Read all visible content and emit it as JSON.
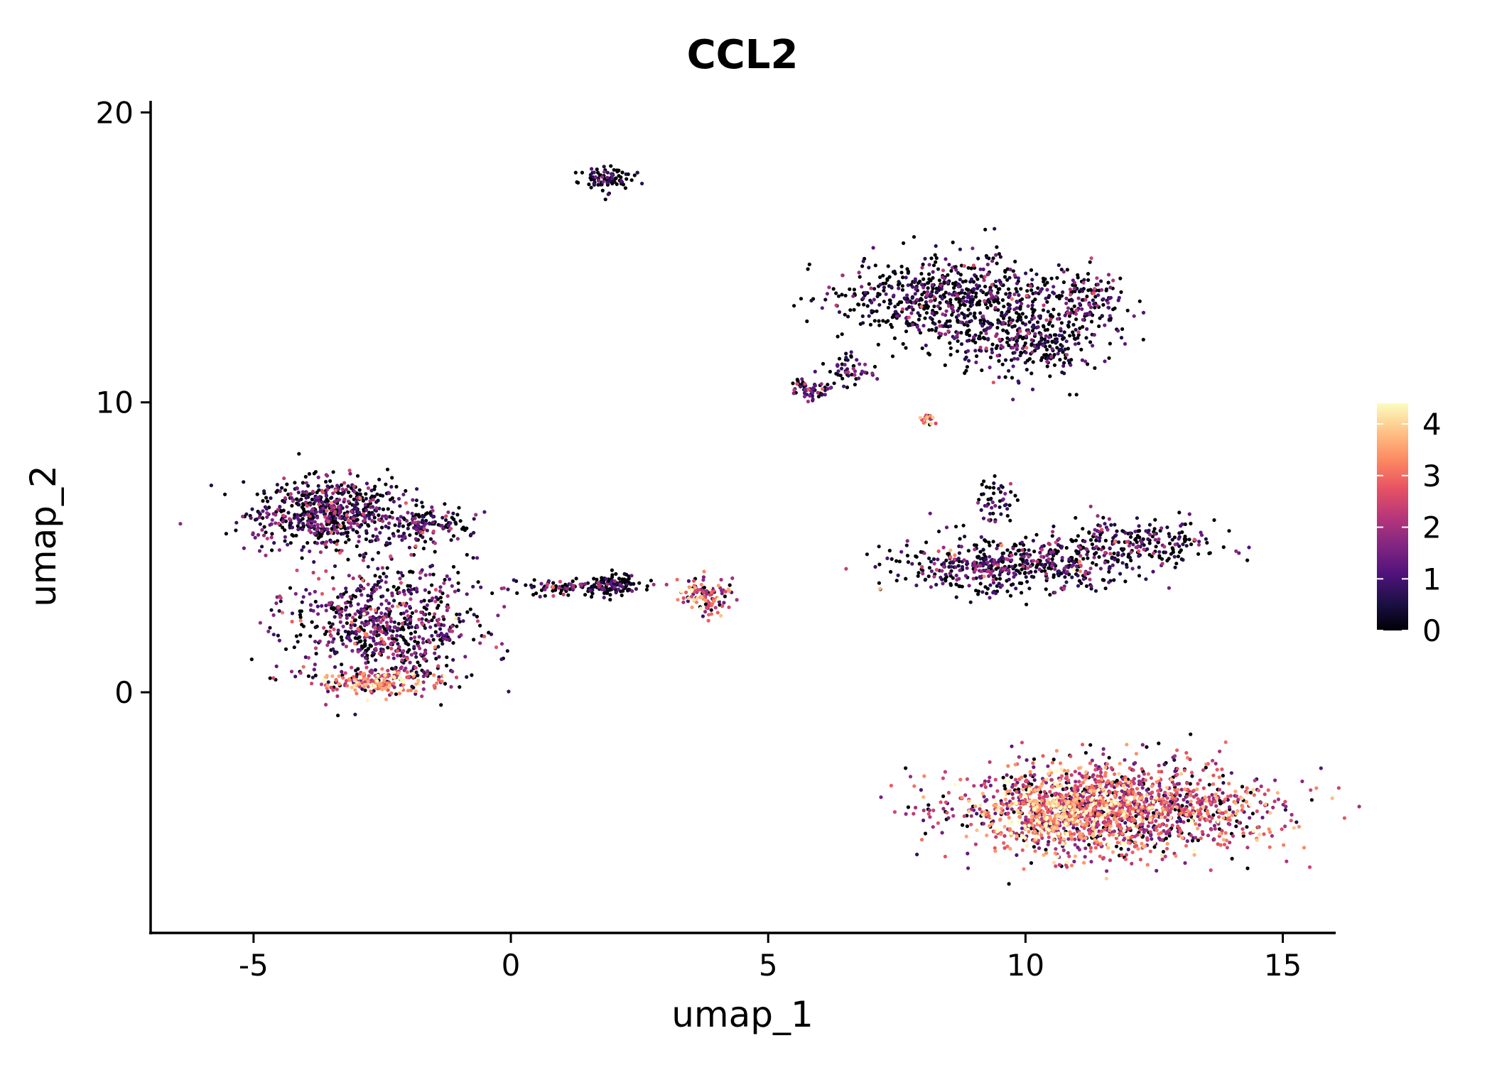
{
  "chart_data": {
    "type": "scatter",
    "title": "CCL2",
    "xlabel": "umap_1",
    "ylabel": "umap_2",
    "xlim": [
      -7,
      16
    ],
    "ylim": [
      -8.3,
      20.4
    ],
    "x_ticks": [
      -5,
      0,
      5,
      10,
      15
    ],
    "y_ticks": [
      0,
      10,
      20
    ],
    "grid": false,
    "color_scale": {
      "name": "magma",
      "min": 0,
      "max": 4.4,
      "ticks": [
        0,
        1,
        2,
        3,
        4
      ],
      "colors": [
        "#000004",
        "#1d1147",
        "#51127c",
        "#822681",
        "#b73779",
        "#e75263",
        "#fc8961",
        "#fec287",
        "#fcfdbf"
      ],
      "legend_position": "right"
    },
    "clusters": [
      {
        "cx": -3.5,
        "cy": 6.2,
        "sx": 0.95,
        "sy": 0.75,
        "n": 650,
        "mean_expr": 0.9
      },
      {
        "cx": -2.5,
        "cy": 2.3,
        "sx": 1.15,
        "sy": 1.2,
        "n": 750,
        "mean_expr": 1.3
      },
      {
        "cx": -2.6,
        "cy": 0.4,
        "sx": 0.65,
        "sy": 0.25,
        "n": 200,
        "mean_expr": 2.8
      },
      {
        "cx": -1.6,
        "cy": 5.8,
        "sx": 0.5,
        "sy": 0.4,
        "n": 120,
        "mean_expr": 0.6
      },
      {
        "cx": 1.2,
        "cy": 3.6,
        "sx": 0.75,
        "sy": 0.15,
        "n": 110,
        "mean_expr": 1.0
      },
      {
        "cx": 2.0,
        "cy": 3.7,
        "sx": 0.25,
        "sy": 0.25,
        "n": 90,
        "mean_expr": 0.4
      },
      {
        "cx": 3.8,
        "cy": 3.3,
        "sx": 0.3,
        "sy": 0.35,
        "n": 110,
        "mean_expr": 2.5
      },
      {
        "cx": 1.9,
        "cy": 17.7,
        "sx": 0.3,
        "sy": 0.25,
        "n": 90,
        "mean_expr": 0.2
      },
      {
        "cx": 5.8,
        "cy": 10.5,
        "sx": 0.3,
        "sy": 0.25,
        "n": 60,
        "mean_expr": 1.2
      },
      {
        "cx": 6.6,
        "cy": 11.1,
        "sx": 0.3,
        "sy": 0.3,
        "n": 50,
        "mean_expr": 1.0
      },
      {
        "cx": 8.6,
        "cy": 13.6,
        "sx": 1.3,
        "sy": 0.85,
        "n": 700,
        "mean_expr": 0.6
      },
      {
        "cx": 10.2,
        "cy": 12.0,
        "sx": 0.9,
        "sy": 0.7,
        "n": 300,
        "mean_expr": 0.5
      },
      {
        "cx": 11.2,
        "cy": 13.6,
        "sx": 0.5,
        "sy": 0.55,
        "n": 120,
        "mean_expr": 0.8
      },
      {
        "cx": 8.1,
        "cy": 9.4,
        "sx": 0.08,
        "sy": 0.12,
        "n": 20,
        "mean_expr": 2.8
      },
      {
        "cx": 9.8,
        "cy": 4.4,
        "sx": 1.4,
        "sy": 0.55,
        "n": 550,
        "mean_expr": 0.9
      },
      {
        "cx": 12.2,
        "cy": 5.2,
        "sx": 0.9,
        "sy": 0.45,
        "n": 200,
        "mean_expr": 0.8
      },
      {
        "cx": 9.4,
        "cy": 6.6,
        "sx": 0.25,
        "sy": 0.5,
        "n": 50,
        "mean_expr": 0.6
      },
      {
        "cx": 11.8,
        "cy": -4.0,
        "sx": 1.8,
        "sy": 0.95,
        "n": 1500,
        "mean_expr": 2.4
      },
      {
        "cx": 10.8,
        "cy": -4.2,
        "sx": 0.9,
        "sy": 0.6,
        "n": 500,
        "mean_expr": 3.3
      }
    ]
  }
}
